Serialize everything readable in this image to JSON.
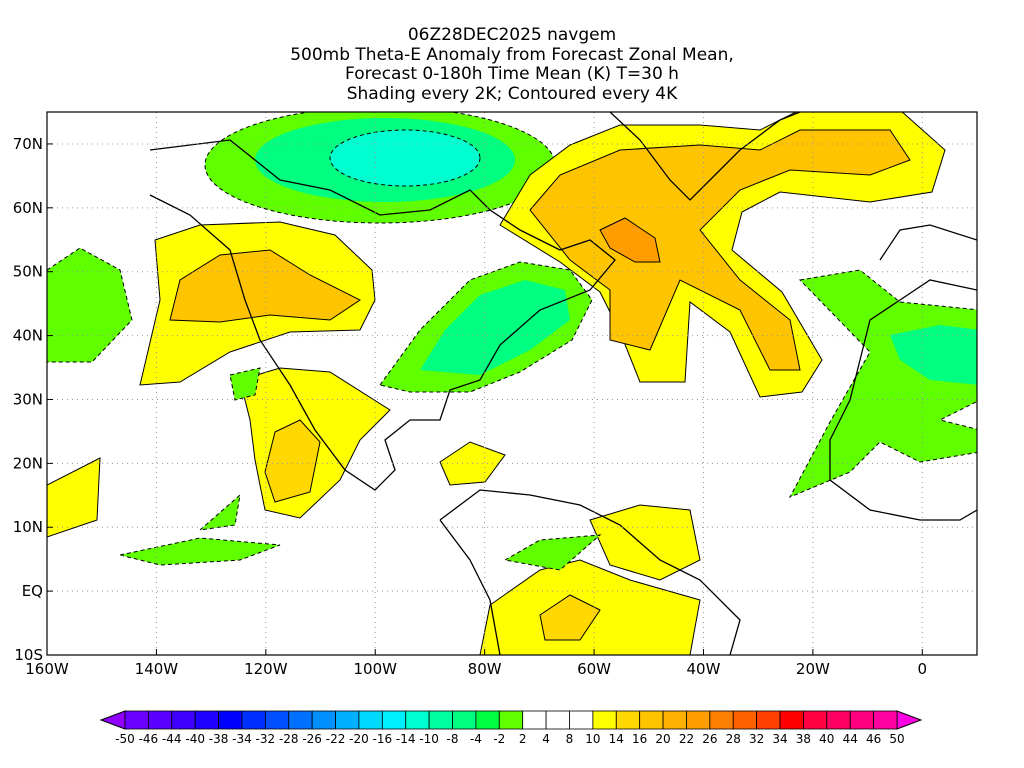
{
  "title": {
    "line1": "06Z28DEC2025 navgem",
    "line2": "500mb Theta-E Anomaly from Forecast Zonal Mean,",
    "line3": "Forecast 0-180h Time Mean (K) T=30 h",
    "line4": "Shading every 2K; Contoured every 4K"
  },
  "map": {
    "lon_range": [
      -160,
      10
    ],
    "lat_range": [
      -10,
      75
    ],
    "lon_labels": [
      {
        "lon": -160,
        "label": "160W"
      },
      {
        "lon": -140,
        "label": "140W"
      },
      {
        "lon": -120,
        "label": "120W"
      },
      {
        "lon": -100,
        "label": "100W"
      },
      {
        "lon": -80,
        "label": "80W"
      },
      {
        "lon": -60,
        "label": "60W"
      },
      {
        "lon": -40,
        "label": "40W"
      },
      {
        "lon": -20,
        "label": "20W"
      },
      {
        "lon": 0,
        "label": "0"
      }
    ],
    "lat_labels": [
      {
        "lat": 70,
        "label": "70N"
      },
      {
        "lat": 60,
        "label": "60N"
      },
      {
        "lat": 50,
        "label": "50N"
      },
      {
        "lat": 40,
        "label": "40N"
      },
      {
        "lat": 30,
        "label": "30N"
      },
      {
        "lat": 20,
        "label": "20N"
      },
      {
        "lat": 10,
        "label": "10N"
      },
      {
        "lat": 0,
        "label": "EQ"
      },
      {
        "lat": -10,
        "label": "10S"
      }
    ]
  },
  "colorbar": {
    "labels": [
      "-50",
      "-46",
      "-44",
      "-40",
      "-38",
      "-34",
      "-32",
      "-28",
      "-26",
      "-22",
      "-20",
      "-16",
      "-14",
      "-10",
      "-8",
      "-4",
      "-2",
      "2",
      "4",
      "8",
      "10",
      "14",
      "16",
      "20",
      "22",
      "26",
      "28",
      "32",
      "34",
      "38",
      "40",
      "44",
      "46",
      "50"
    ],
    "colors": [
      "#6a00ff",
      "#5a00ff",
      "#4000ff",
      "#2000ff",
      "#0000ff",
      "#0030ff",
      "#0050ff",
      "#0070ff",
      "#0090ff",
      "#00b0ff",
      "#00d8ff",
      "#00f0ff",
      "#00ffd0",
      "#00ffa0",
      "#00ff80",
      "#00ff40",
      "#60ff00",
      "#ffffff",
      "#ffffff",
      "#ffffff",
      "#ffff00",
      "#ffd800",
      "#ffc400",
      "#ffb000",
      "#ff9c00",
      "#ff8000",
      "#ff6000",
      "#ff4000",
      "#ff0000",
      "#ff0040",
      "#ff0060",
      "#ff0080",
      "#ff00a0"
    ],
    "low_color": "#9000ff",
    "high_color": "#ff00e0"
  }
}
